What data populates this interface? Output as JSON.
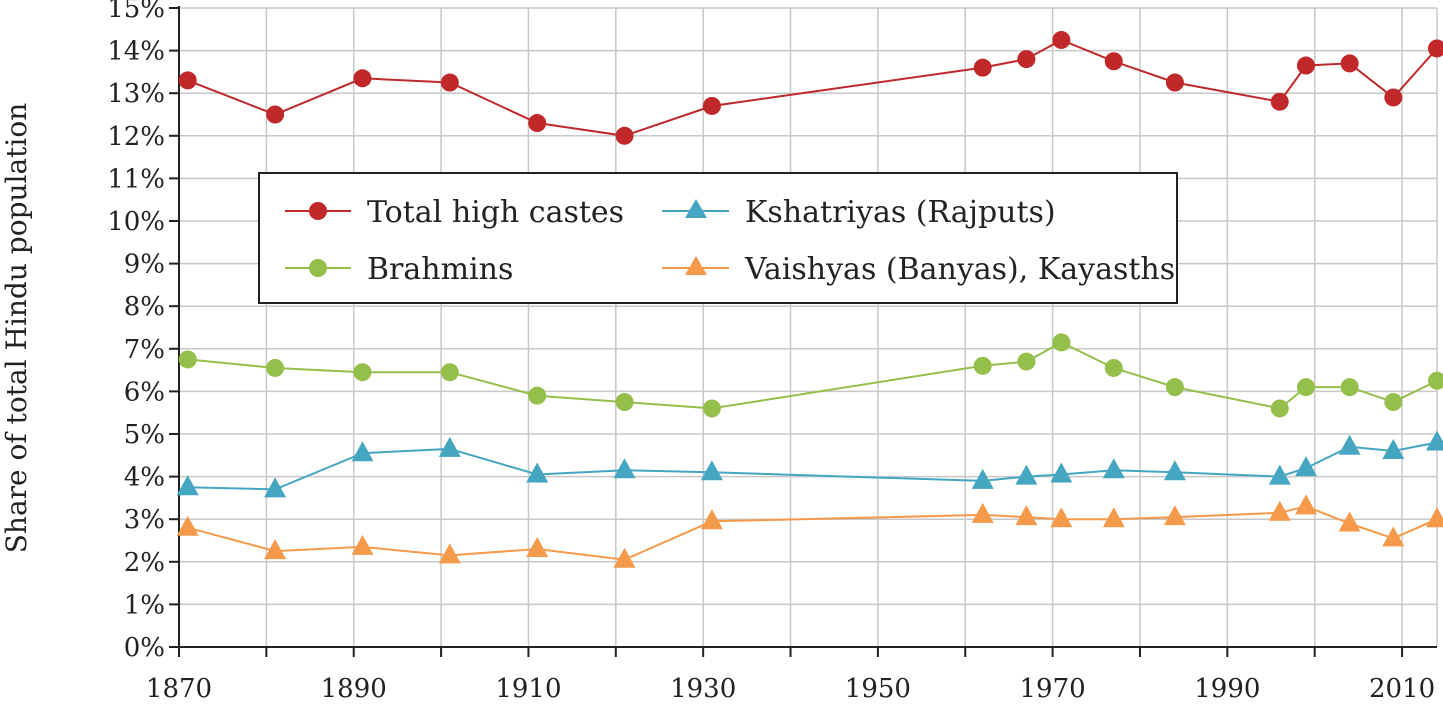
{
  "chart_data": {
    "type": "line",
    "title": "",
    "xlabel": "",
    "ylabel": "Share of total Hindu population",
    "xlim": [
      1870,
      2014
    ],
    "ylim": [
      0,
      15
    ],
    "grid": true,
    "x_ticks": [
      1870,
      1890,
      1910,
      1930,
      1950,
      1970,
      1990,
      2010
    ],
    "x_minor_step": 10,
    "y_ticks": [
      {
        "v": 0,
        "label": "0%"
      },
      {
        "v": 1,
        "label": "1%"
      },
      {
        "v": 2,
        "label": "2%"
      },
      {
        "v": 3,
        "label": "3%"
      },
      {
        "v": 4,
        "label": "4%"
      },
      {
        "v": 5,
        "label": "5%"
      },
      {
        "v": 6,
        "label": "6%"
      },
      {
        "v": 7,
        "label": "7%"
      },
      {
        "v": 8,
        "label": "8%"
      },
      {
        "v": 9,
        "label": "9%"
      },
      {
        "v": 10,
        "label": "10%"
      },
      {
        "v": 11,
        "label": "11%"
      },
      {
        "v": 12,
        "label": "12%"
      },
      {
        "v": 13,
        "label": "13%"
      },
      {
        "v": 14,
        "label": "14%"
      },
      {
        "v": 15,
        "label": "15%"
      }
    ],
    "legend_position": "upper-left",
    "series": [
      {
        "name": "Total high castes",
        "color": "#c0282a",
        "marker": "circle",
        "x": [
          1871,
          1881,
          1891,
          1901,
          1911,
          1921,
          1931,
          1962,
          1967,
          1971,
          1977,
          1984,
          1996,
          1999,
          2004,
          2009,
          2014
        ],
        "values": [
          13.3,
          12.5,
          13.35,
          13.25,
          12.3,
          12.0,
          12.7,
          13.6,
          13.8,
          14.25,
          13.75,
          13.25,
          12.8,
          13.65,
          13.7,
          12.9,
          14.05
        ]
      },
      {
        "name": "Kshatriyas (Rajputs)",
        "color": "#45a6c1",
        "marker": "triangle",
        "x": [
          1871,
          1881,
          1891,
          1901,
          1911,
          1921,
          1931,
          1962,
          1967,
          1971,
          1977,
          1984,
          1996,
          1999,
          2004,
          2009,
          2014
        ],
        "values": [
          3.75,
          3.7,
          4.55,
          4.65,
          4.05,
          4.15,
          4.1,
          3.9,
          4.0,
          4.05,
          4.15,
          4.1,
          4.0,
          4.2,
          4.7,
          4.6,
          4.8
        ]
      },
      {
        "name": "Brahmins",
        "color": "#95bf4b",
        "marker": "circle",
        "x": [
          1871,
          1881,
          1891,
          1901,
          1911,
          1921,
          1931,
          1962,
          1967,
          1971,
          1977,
          1984,
          1996,
          1999,
          2004,
          2009,
          2014
        ],
        "values": [
          6.75,
          6.55,
          6.45,
          6.45,
          5.9,
          5.75,
          5.6,
          6.6,
          6.7,
          7.15,
          6.55,
          6.1,
          5.6,
          6.1,
          6.1,
          5.75,
          6.25
        ]
      },
      {
        "name": "Vaishyas (Banyas), Kayasths",
        "color": "#f49a4a",
        "marker": "triangle",
        "x": [
          1871,
          1881,
          1891,
          1901,
          1911,
          1921,
          1931,
          1962,
          1967,
          1971,
          1977,
          1984,
          1996,
          1999,
          2004,
          2009,
          2014
        ],
        "values": [
          2.8,
          2.25,
          2.35,
          2.15,
          2.3,
          2.05,
          2.95,
          3.1,
          3.05,
          3.0,
          3.0,
          3.05,
          3.15,
          3.3,
          2.9,
          2.55,
          3.0
        ]
      }
    ]
  }
}
